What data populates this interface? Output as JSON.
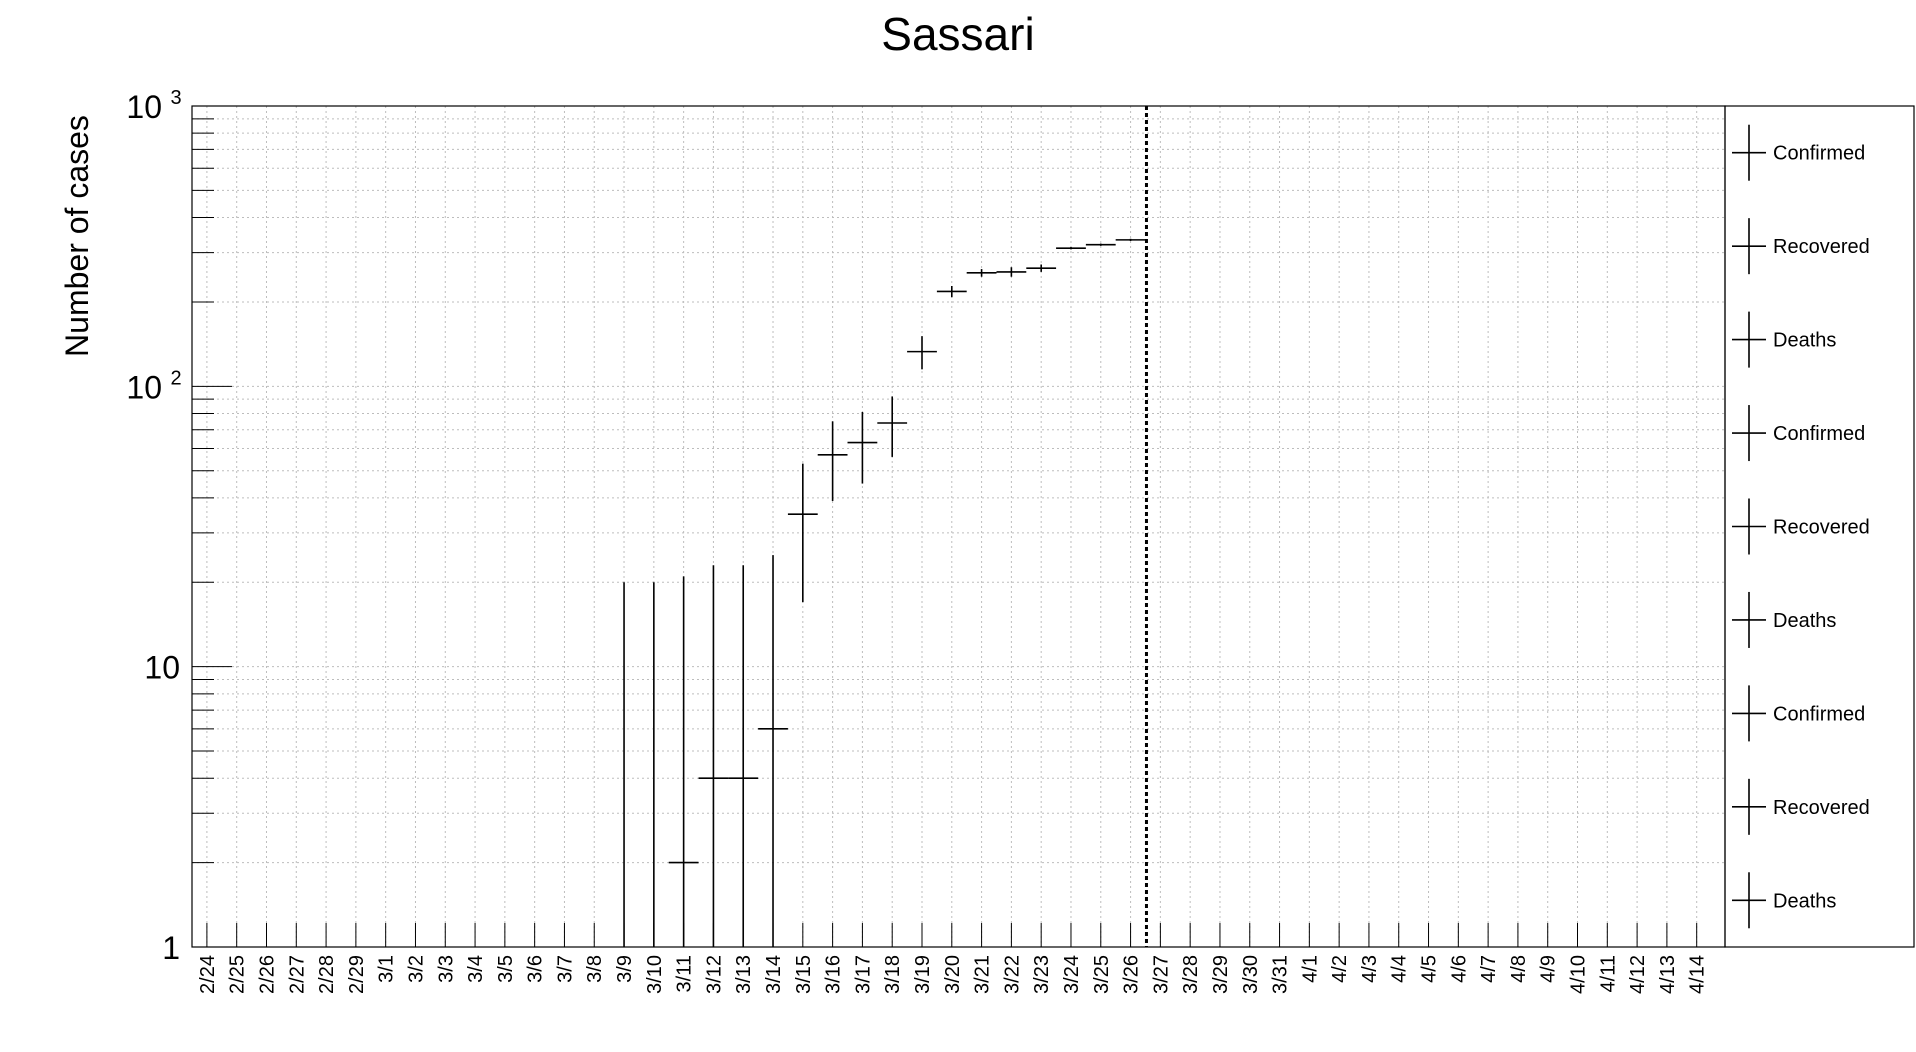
{
  "chart_data": {
    "type": "scatter",
    "title": "Sassari",
    "xlabel": "",
    "ylabel": "Number of cases",
    "yscale": "log",
    "ylim": [
      1,
      1000
    ],
    "ytick_labels": [
      {
        "value": 1,
        "label": "1"
      },
      {
        "value": 10,
        "label": "10"
      },
      {
        "value": 100,
        "label": "10",
        "exponent": "2"
      },
      {
        "value": 1000,
        "label": "10",
        "exponent": "3"
      }
    ],
    "categories": [
      "2/24",
      "2/25",
      "2/26",
      "2/27",
      "2/28",
      "2/29",
      "3/1",
      "3/2",
      "3/3",
      "3/4",
      "3/5",
      "3/6",
      "3/7",
      "3/8",
      "3/9",
      "3/10",
      "3/11",
      "3/12",
      "3/13",
      "3/14",
      "3/15",
      "3/16",
      "3/17",
      "3/18",
      "3/19",
      "3/20",
      "3/21",
      "3/22",
      "3/23",
      "3/24",
      "3/25",
      "3/26",
      "3/27",
      "3/28",
      "3/29",
      "3/30",
      "3/31",
      "4/1",
      "4/2",
      "4/3",
      "4/4",
      "4/5",
      "4/6",
      "4/7",
      "4/8",
      "4/9",
      "4/10",
      "4/11",
      "4/12",
      "4/13",
      "4/14"
    ],
    "grid": true,
    "marker_line_date": "3/26",
    "points": [
      {
        "x": "3/9",
        "y": 0,
        "err_low": 0,
        "err_high": 20
      },
      {
        "x": "3/10",
        "y": 0,
        "err_low": 0,
        "err_high": 20
      },
      {
        "x": "3/11",
        "y": 2,
        "err_low": 0,
        "err_high": 21
      },
      {
        "x": "3/12",
        "y": 4,
        "err_low": 0,
        "err_high": 23
      },
      {
        "x": "3/13",
        "y": 4,
        "err_low": 0,
        "err_high": 23
      },
      {
        "x": "3/14",
        "y": 6,
        "err_low": 0,
        "err_high": 25
      },
      {
        "x": "3/15",
        "y": 35,
        "err_low": 17,
        "err_high": 53
      },
      {
        "x": "3/16",
        "y": 57,
        "err_low": 39,
        "err_high": 75
      },
      {
        "x": "3/17",
        "y": 63,
        "err_low": 45,
        "err_high": 81
      },
      {
        "x": "3/18",
        "y": 74,
        "err_low": 56,
        "err_high": 92
      },
      {
        "x": "3/19",
        "y": 133,
        "err_low": 115,
        "err_high": 151
      },
      {
        "x": "3/20",
        "y": 218,
        "err_low": 208,
        "err_high": 228
      },
      {
        "x": "3/21",
        "y": 254,
        "err_low": 246,
        "err_high": 262
      },
      {
        "x": "3/22",
        "y": 256,
        "err_low": 246,
        "err_high": 266
      },
      {
        "x": "3/23",
        "y": 264,
        "err_low": 256,
        "err_high": 272
      },
      {
        "x": "3/24",
        "y": 311,
        "err_low": 308,
        "err_high": 314
      },
      {
        "x": "3/25",
        "y": 320,
        "err_low": 317,
        "err_high": 323
      },
      {
        "x": "3/26",
        "y": 333,
        "err_low": 330,
        "err_high": 336
      }
    ],
    "legend": {
      "placement": "right",
      "entries": [
        "Confirmed",
        "Recovered",
        "Deaths",
        "Confirmed",
        "Recovered",
        "Deaths",
        "Confirmed",
        "Recovered",
        "Deaths"
      ]
    }
  }
}
